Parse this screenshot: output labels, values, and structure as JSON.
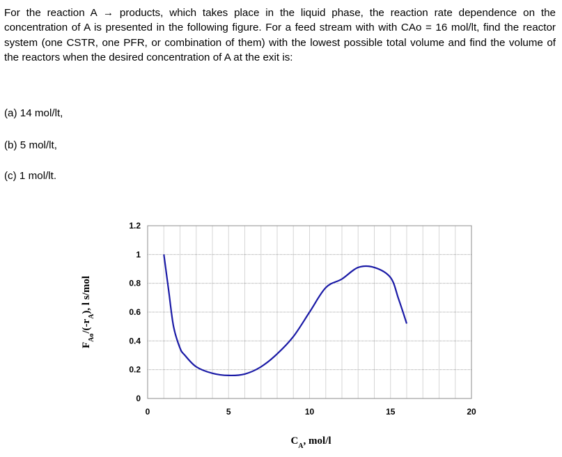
{
  "problem": {
    "statement": "For the reaction A → products, which takes place in the liquid phase, the reaction rate dependence on the concentration of A is presented in the following figure. For a feed stream with with CAo = 16 mol/lt, find the reactor system (one CSTR, one PFR, or combination of them) with the lowest possible total volume and find the volume of the reactors when the desired concentration of A at the exit is:",
    "parts": [
      "(a) 14 mol/lt,",
      "(b) 5 mol/lt,",
      "(c) 1 mol/lt."
    ]
  },
  "chart_data": {
    "type": "line",
    "title": "",
    "xlabel": "C_A, mol/l",
    "ylabel": "F_Ao/(-r_A), l s/mol",
    "xlim": [
      0,
      20
    ],
    "ylim": [
      0,
      1.2
    ],
    "x_ticks": [
      "0",
      "5",
      "10",
      "15",
      "20"
    ],
    "y_ticks": [
      "0",
      "0.2",
      "0.4",
      "0.6",
      "0.8",
      "1",
      "1.2"
    ],
    "grid": true,
    "line_color": "#1a1aa6",
    "series": [
      {
        "x": [
          1,
          1.3,
          1.6,
          2.0,
          2.3,
          3.0,
          4.0,
          5.0,
          6.0,
          7.0,
          8.0,
          9.0,
          10.0,
          11.0,
          12.0,
          13.0,
          14.0,
          15.0,
          15.5,
          16.0
        ],
        "values": [
          1.0,
          0.75,
          0.5,
          0.35,
          0.3,
          0.22,
          0.175,
          0.16,
          0.17,
          0.22,
          0.31,
          0.43,
          0.6,
          0.77,
          0.83,
          0.91,
          0.91,
          0.84,
          0.69,
          0.52
        ]
      }
    ]
  }
}
